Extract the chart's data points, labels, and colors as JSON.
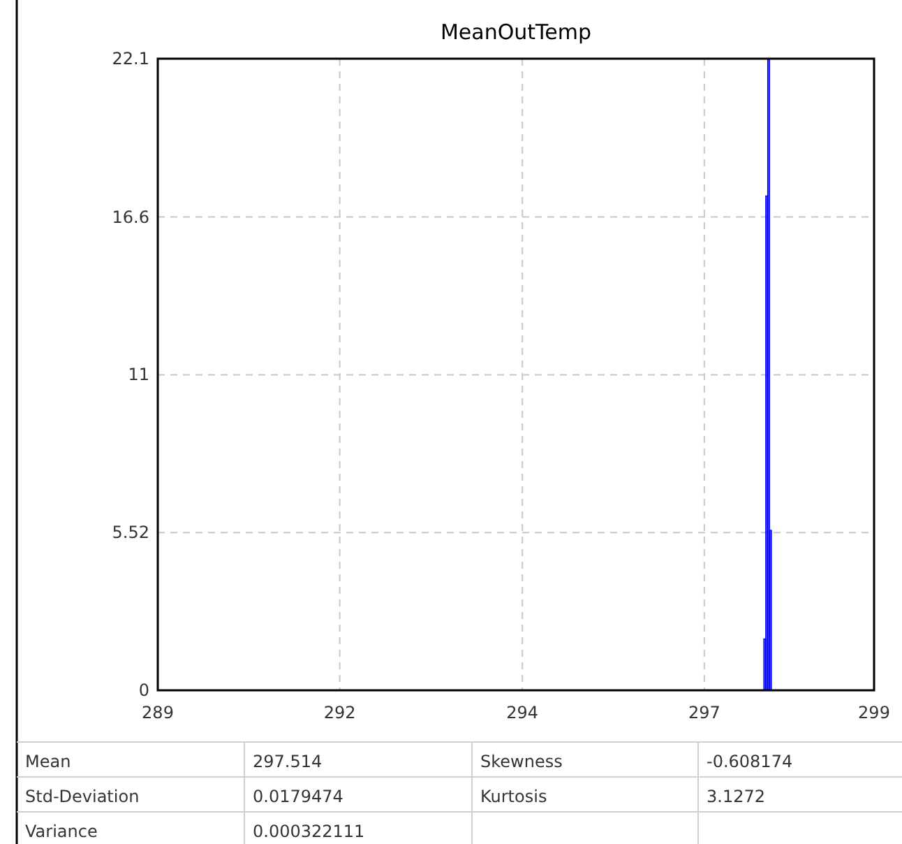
{
  "chart_data": {
    "type": "histogram",
    "title": "MeanOutTemp",
    "bins": [
      297.46,
      297.487,
      297.514,
      297.541,
      297.568
    ],
    "values": [
      1.8,
      17.3,
      22.1,
      5.6
    ],
    "color": "#0000ff",
    "xlim": [
      289,
      299
    ],
    "xticks": [
      289,
      {
        "value": 291.54,
        "label": "292"
      },
      {
        "value": 294.09,
        "label": "294"
      },
      {
        "value": 296.63,
        "label": "297"
      },
      299
    ],
    "ylim": [
      0,
      22.1
    ],
    "yticks": [
      0,
      5.52,
      {
        "value": 11.04,
        "label": "11"
      },
      {
        "value": 16.56,
        "label": "16.6"
      },
      22.1
    ],
    "grid": true,
    "annotations": [
      "Mean",
      "297.514",
      "Skewness",
      "-0.608174",
      "Std-Deviation",
      "0.0179474",
      "Kurtosis",
      "3.1272",
      "Variance",
      "0.000322111"
    ]
  }
}
